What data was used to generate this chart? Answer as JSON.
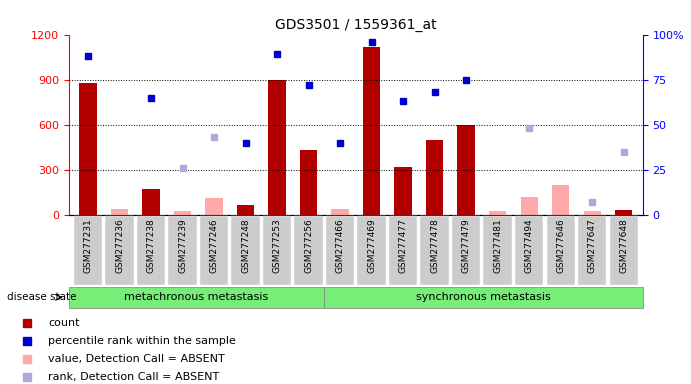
{
  "title": "GDS3501 / 1559361_at",
  "samples": [
    "GSM277231",
    "GSM277236",
    "GSM277238",
    "GSM277239",
    "GSM277246",
    "GSM277248",
    "GSM277253",
    "GSM277256",
    "GSM277466",
    "GSM277469",
    "GSM277477",
    "GSM277478",
    "GSM277479",
    "GSM277481",
    "GSM277494",
    "GSM277646",
    "GSM277647",
    "GSM277648"
  ],
  "count_values": [
    880,
    null,
    170,
    null,
    null,
    65,
    900,
    430,
    null,
    1120,
    320,
    500,
    600,
    null,
    null,
    null,
    null,
    35
  ],
  "count_absent": [
    null,
    40,
    null,
    30,
    110,
    null,
    null,
    null,
    40,
    null,
    null,
    null,
    null,
    30,
    120,
    200,
    30,
    null
  ],
  "rank_present_pct": [
    88,
    null,
    65,
    null,
    null,
    40,
    89,
    72,
    40,
    96,
    63,
    68,
    75,
    null,
    null,
    null,
    null,
    null
  ],
  "rank_absent_pct": [
    null,
    null,
    null,
    26,
    43,
    null,
    null,
    null,
    null,
    null,
    null,
    null,
    null,
    null,
    48,
    null,
    7,
    35
  ],
  "group1_indices": [
    0,
    1,
    2,
    3,
    4,
    5,
    6,
    7
  ],
  "group2_indices": [
    8,
    9,
    10,
    11,
    12,
    13,
    14,
    15,
    16,
    17
  ],
  "group1_label": "metachronous metastasis",
  "group2_label": "synchronous metastasis",
  "disease_state_label": "disease state",
  "ylim_left": [
    0,
    1200
  ],
  "ylim_right": [
    0,
    100
  ],
  "yticks_left": [
    0,
    300,
    600,
    900,
    1200
  ],
  "yticks_right": [
    0,
    25,
    50,
    75,
    100
  ],
  "bar_color": "#b20000",
  "bar_absent_color": "#ffaaaa",
  "rank_present_color": "#0000cc",
  "rank_absent_color": "#aaaadd",
  "group_bg_color": "#77ee77",
  "xtick_bg_color": "#cccccc",
  "legend_items": [
    {
      "label": "count",
      "color": "#b20000"
    },
    {
      "label": "percentile rank within the sample",
      "color": "#0000cc"
    },
    {
      "label": "value, Detection Call = ABSENT",
      "color": "#ffaaaa"
    },
    {
      "label": "rank, Detection Call = ABSENT",
      "color": "#aaaadd"
    }
  ]
}
